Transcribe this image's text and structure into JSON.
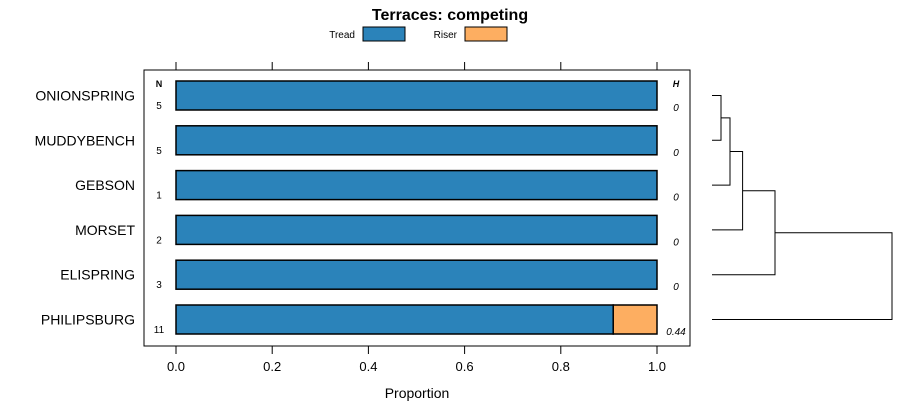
{
  "chart_data": {
    "type": "bar",
    "orientation": "horizontal",
    "stacked": true,
    "title": "Terraces: competing",
    "xlabel": "Proportion",
    "ylabel": "",
    "xlim": [
      0,
      1
    ],
    "x_ticks": [
      0.0,
      0.2,
      0.4,
      0.6,
      0.8,
      1.0
    ],
    "x_tick_labels": [
      "0.0",
      "0.2",
      "0.4",
      "0.6",
      "0.8",
      "1.0"
    ],
    "legend": {
      "placement": "top-center",
      "entries": [
        {
          "name": "Tread",
          "color": "#2b83ba"
        },
        {
          "name": "Riser",
          "color": "#fdae61"
        }
      ]
    },
    "categories": [
      "ONIONSPRING",
      "MUDDYBENCH",
      "GEBSON",
      "MORSET",
      "ELISPRING",
      "PHILIPSBURG"
    ],
    "series": [
      {
        "name": "Tread",
        "color": "#2b83ba",
        "values": [
          1.0,
          1.0,
          1.0,
          1.0,
          1.0,
          0.909
        ]
      },
      {
        "name": "Riser",
        "color": "#fdae61",
        "values": [
          0.0,
          0.0,
          0.0,
          0.0,
          0.0,
          0.091
        ]
      }
    ],
    "n_header": "N",
    "h_header": "H",
    "n_values": [
      "5",
      "5",
      "1",
      "2",
      "3",
      "11"
    ],
    "h_values": [
      "0",
      "0",
      "0",
      "0",
      "0",
      "0.44"
    ],
    "dendrogram": {
      "description": "cluster tree of categories",
      "merges": [
        {
          "left": "ONIONSPRING",
          "right": "MUDDYBENCH",
          "height": 0.05
        },
        {
          "left": "cluster-1",
          "right": "GEBSON",
          "height": 0.1
        },
        {
          "left": "cluster-2",
          "right": "MORSET",
          "height": 0.17
        },
        {
          "left": "cluster-3",
          "right": "ELISPRING",
          "height": 0.35
        },
        {
          "left": "cluster-4",
          "right": "PHILIPSBURG",
          "height": 1.0
        }
      ]
    }
  }
}
